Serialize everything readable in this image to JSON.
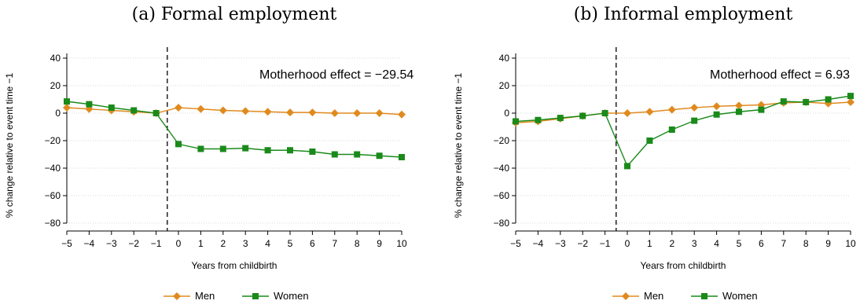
{
  "chart_data": [
    {
      "type": "line",
      "title": "(a) Formal employment",
      "xlabel": "Years from childbirth",
      "ylabel": "% change relative to event time −1",
      "x": [
        -5,
        -4,
        -3,
        -2,
        -1,
        0,
        1,
        2,
        3,
        4,
        5,
        6,
        7,
        8,
        9,
        10
      ],
      "x_tick_labels": [
        "−5",
        "−4",
        "−3",
        "−2",
        "−1",
        "0",
        "1",
        "2",
        "3",
        "4",
        "5",
        "6",
        "7",
        "8",
        "9",
        "10"
      ],
      "y_ticks": [
        40,
        20,
        0,
        -20,
        -40,
        -60,
        -80
      ],
      "y_tick_labels": [
        "40",
        "20",
        "0",
        "−20",
        "−40",
        "−60",
        "−80"
      ],
      "ylim": [
        -80,
        40
      ],
      "xlim": [
        -5,
        10
      ],
      "event_line_x": -0.5,
      "grid": true,
      "annotation": "Motherhood effect = −29.54",
      "legend_position": "bottom-center",
      "series": [
        {
          "name": "Men",
          "color": "#e08a1e",
          "marker": "diamond",
          "values": [
            4,
            3,
            2,
            1,
            0,
            4,
            3,
            2,
            1.5,
            1,
            0.5,
            0.5,
            0,
            0,
            0,
            -1
          ]
        },
        {
          "name": "Women",
          "color": "#1a8a1a",
          "marker": "square",
          "values": [
            8.5,
            6.5,
            4,
            2,
            0,
            -22.5,
            -26,
            -26,
            -25.5,
            -27,
            -27,
            -28,
            -30,
            -30,
            -31,
            -32
          ]
        }
      ]
    },
    {
      "type": "line",
      "title": "(b) Informal employment",
      "xlabel": "Years from childbirth",
      "ylabel": "% change relative to event time −1",
      "x": [
        -5,
        -4,
        -3,
        -2,
        -1,
        0,
        1,
        2,
        3,
        4,
        5,
        6,
        7,
        8,
        9,
        10
      ],
      "x_tick_labels": [
        "−5",
        "−4",
        "−3",
        "−2",
        "−1",
        "0",
        "1",
        "2",
        "3",
        "4",
        "5",
        "6",
        "7",
        "8",
        "9",
        "10"
      ],
      "y_ticks": [
        40,
        20,
        0,
        -20,
        -40,
        -60,
        -80
      ],
      "y_tick_labels": [
        "40",
        "20",
        "0",
        "−20",
        "−40",
        "−60",
        "−80"
      ],
      "ylim": [
        -80,
        40
      ],
      "xlim": [
        -5,
        10
      ],
      "event_line_x": -0.5,
      "grid": true,
      "annotation": "Motherhood effect = 6.93",
      "legend_position": "bottom-center",
      "series": [
        {
          "name": "Men",
          "color": "#e08a1e",
          "marker": "diamond",
          "values": [
            -7,
            -6,
            -4,
            -2,
            0,
            0,
            1,
            2.5,
            4,
            5,
            5.5,
            6,
            7.5,
            8,
            7,
            8
          ]
        },
        {
          "name": "Women",
          "color": "#1a8a1a",
          "marker": "square",
          "values": [
            -6,
            -5,
            -3.5,
            -2,
            0,
            -38.5,
            -20,
            -12,
            -5.5,
            -1,
            1,
            2.5,
            8.5,
            8,
            10,
            12.5
          ]
        }
      ]
    }
  ]
}
